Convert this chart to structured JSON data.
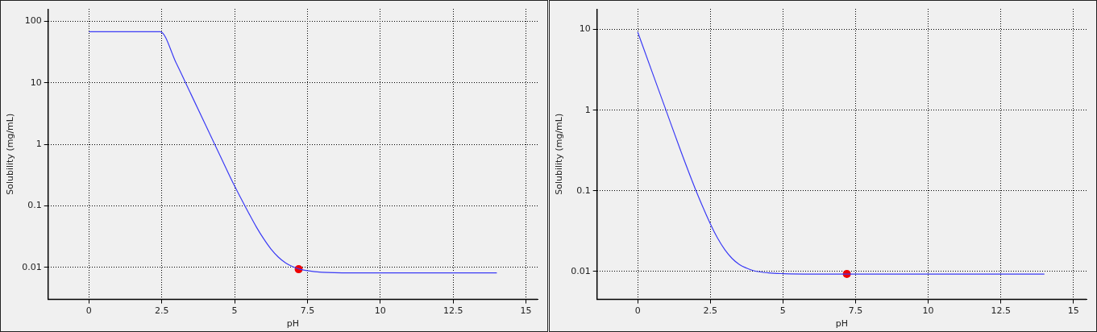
{
  "chart_data": [
    {
      "type": "line",
      "xlabel": "pH",
      "ylabel": "Solubility (mg/mL)",
      "log": "y",
      "grid": true,
      "legend": false,
      "xlim": [
        -1.4,
        15.4
      ],
      "xticks": [
        0,
        2.5,
        5,
        7.5,
        10,
        12.5,
        15
      ],
      "ylim": [
        0.003,
        160
      ],
      "yticks": [
        0.01,
        0.1,
        1,
        10,
        100
      ],
      "series": [
        {
          "color": "#3b3bf5",
          "x": [
            0,
            2.45,
            3,
            3.5,
            4,
            4.5,
            5,
            5.5,
            5.75,
            6,
            6.25,
            6.5,
            6.75,
            7,
            7.25,
            7.5,
            8,
            9,
            10,
            14
          ],
          "values": [
            68,
            68,
            20.8,
            6.6,
            2.09,
            0.66,
            0.21,
            0.074,
            0.045,
            0.029,
            0.0198,
            0.0147,
            0.0118,
            0.0102,
            0.0093,
            0.0088,
            0.0083,
            0.0081,
            0.0081,
            0.0081
          ]
        },
        {
          "type": "scatter",
          "color": "#ee0000",
          "x": [
            7.2
          ],
          "values": [
            0.0093
          ]
        }
      ]
    },
    {
      "type": "line",
      "xlabel": "pH",
      "ylabel": "Solubility (mg/mL)",
      "log": "y",
      "grid": true,
      "legend": false,
      "xlim": [
        -1.4,
        15.45
      ],
      "xticks": [
        0,
        2.5,
        5,
        7.5,
        10,
        12.5,
        15
      ],
      "ylim": [
        0.0045,
        18
      ],
      "yticks": [
        0.01,
        0.1,
        1,
        10
      ],
      "series": [
        {
          "color": "#3b3bf5",
          "x": [
            0,
            0.5,
            1,
            1.5,
            2,
            2.5,
            2.75,
            3,
            3.25,
            3.5,
            3.75,
            4,
            4.5,
            5,
            6,
            14
          ],
          "values": [
            9.3,
            2.95,
            0.94,
            0.3,
            0.102,
            0.039,
            0.0259,
            0.0186,
            0.0145,
            0.0122,
            0.011,
            0.0102,
            0.0096,
            0.0094,
            0.0093,
            0.0093
          ]
        },
        {
          "type": "scatter",
          "color": "#ee0000",
          "x": [
            7.2
          ],
          "values": [
            0.0093
          ]
        }
      ]
    }
  ]
}
